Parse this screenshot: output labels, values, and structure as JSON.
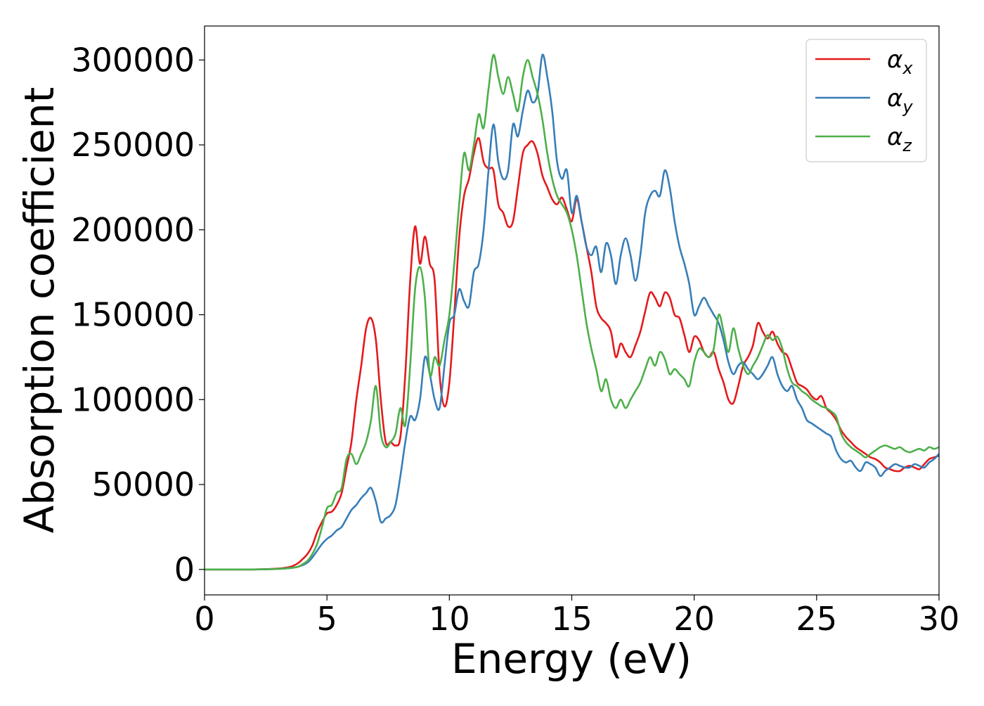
{
  "chart_data": {
    "type": "line",
    "xlabel": "Energy (eV)",
    "ylabel": "Absorption coefficient",
    "xlim": [
      0,
      30
    ],
    "ylim": [
      -15000,
      320000
    ],
    "xticks": [
      0,
      5,
      10,
      15,
      20,
      25,
      30
    ],
    "xtick_labels": [
      "0",
      "5",
      "10",
      "15",
      "20",
      "25",
      "30"
    ],
    "yticks": [
      0,
      50000,
      100000,
      150000,
      200000,
      250000,
      300000
    ],
    "ytick_labels": [
      "0",
      "50000",
      "100000",
      "150000",
      "200000",
      "250000",
      "300000"
    ],
    "grid": false,
    "legend_position": "top-right",
    "series": [
      {
        "name": "αx",
        "name_base": "α",
        "name_sub": "x",
        "color": "#e41a1c",
        "x": [
          0,
          2,
          3,
          3.5,
          3.8,
          4.0,
          4.2,
          4.4,
          4.6,
          4.8,
          5.0,
          5.2,
          5.4,
          5.6,
          5.8,
          6.0,
          6.2,
          6.4,
          6.6,
          6.8,
          7.0,
          7.2,
          7.4,
          7.6,
          7.8,
          8.0,
          8.2,
          8.4,
          8.6,
          8.8,
          9.0,
          9.2,
          9.4,
          9.6,
          9.8,
          10.0,
          10.2,
          10.4,
          10.6,
          10.8,
          11.0,
          11.2,
          11.4,
          11.6,
          11.8,
          12.0,
          12.2,
          12.4,
          12.6,
          12.8,
          13.0,
          13.2,
          13.4,
          13.6,
          13.8,
          14.0,
          14.2,
          14.4,
          14.6,
          14.8,
          15.0,
          15.2,
          15.4,
          15.6,
          15.8,
          16.0,
          16.2,
          16.4,
          16.6,
          16.8,
          17.0,
          17.2,
          17.4,
          17.6,
          17.8,
          18.0,
          18.2,
          18.4,
          18.6,
          18.8,
          19.0,
          19.2,
          19.4,
          19.6,
          19.8,
          20.0,
          20.2,
          20.4,
          20.6,
          20.8,
          21.0,
          21.2,
          21.4,
          21.6,
          21.8,
          22.0,
          22.2,
          22.4,
          22.6,
          22.8,
          23.0,
          23.2,
          23.4,
          23.6,
          23.8,
          24.0,
          24.2,
          24.4,
          24.6,
          24.8,
          25.0,
          25.2,
          25.4,
          25.6,
          25.8,
          26.0,
          26.2,
          26.4,
          26.6,
          26.8,
          27.0,
          27.2,
          27.4,
          27.6,
          27.8,
          28.0,
          28.2,
          28.4,
          28.6,
          28.8,
          29.0,
          29.2,
          29.4,
          29.6,
          29.8,
          30.0
        ],
        "y": [
          0,
          0,
          500,
          1500,
          3500,
          6000,
          9000,
          14000,
          22000,
          28000,
          33000,
          34000,
          38000,
          45000,
          60000,
          75000,
          100000,
          120000,
          142000,
          148000,
          135000,
          100000,
          75000,
          75000,
          73000,
          78000,
          115000,
          170000,
          202000,
          180000,
          196000,
          180000,
          170000,
          115000,
          96000,
          110000,
          150000,
          195000,
          220000,
          230000,
          245000,
          254000,
          240000,
          236000,
          235000,
          215000,
          210000,
          202000,
          205000,
          225000,
          245000,
          250000,
          252000,
          245000,
          232000,
          225000,
          218000,
          215000,
          219000,
          212000,
          205000,
          218000,
          205000,
          190000,
          175000,
          155000,
          148000,
          145000,
          140000,
          125000,
          133000,
          128000,
          125000,
          132000,
          140000,
          152000,
          163000,
          160000,
          155000,
          163000,
          160000,
          150000,
          148000,
          138000,
          128000,
          137000,
          135000,
          128000,
          125000,
          128000,
          118000,
          110000,
          100000,
          98000,
          108000,
          120000,
          125000,
          132000,
          145000,
          140000,
          136000,
          140000,
          133000,
          128000,
          126000,
          118000,
          110000,
          108000,
          106000,
          102000,
          100000,
          102000,
          95000,
          92000,
          88000,
          82000,
          78000,
          75000,
          72000,
          70000,
          68000,
          66000,
          65000,
          63000,
          60000,
          59000,
          58000,
          58000,
          60000,
          61000,
          60000,
          59000,
          62000,
          65000,
          66000,
          67000
        ]
      },
      {
        "name": "αy",
        "name_base": "α",
        "name_sub": "y",
        "color": "#377eb8",
        "x": [
          0,
          2,
          3,
          3.5,
          3.8,
          4.0,
          4.2,
          4.4,
          4.6,
          4.8,
          5.0,
          5.2,
          5.4,
          5.6,
          5.8,
          6.0,
          6.2,
          6.4,
          6.6,
          6.8,
          7.0,
          7.2,
          7.4,
          7.6,
          7.8,
          8.0,
          8.2,
          8.4,
          8.6,
          8.8,
          9.0,
          9.2,
          9.4,
          9.6,
          9.8,
          10.0,
          10.2,
          10.4,
          10.6,
          10.8,
          11.0,
          11.2,
          11.4,
          11.6,
          11.8,
          12.0,
          12.2,
          12.4,
          12.6,
          12.8,
          13.0,
          13.2,
          13.4,
          13.6,
          13.8,
          14.0,
          14.2,
          14.4,
          14.6,
          14.8,
          15.0,
          15.2,
          15.4,
          15.6,
          15.8,
          16.0,
          16.2,
          16.4,
          16.6,
          16.8,
          17.0,
          17.2,
          17.4,
          17.6,
          17.8,
          18.0,
          18.2,
          18.4,
          18.6,
          18.8,
          19.0,
          19.2,
          19.4,
          19.6,
          19.8,
          20.0,
          20.2,
          20.4,
          20.6,
          20.8,
          21.0,
          21.2,
          21.4,
          21.6,
          21.8,
          22.0,
          22.2,
          22.4,
          22.6,
          22.8,
          23.0,
          23.2,
          23.4,
          23.6,
          23.8,
          24.0,
          24.2,
          24.4,
          24.6,
          24.8,
          25.0,
          25.2,
          25.4,
          25.6,
          25.8,
          26.0,
          26.2,
          26.4,
          26.6,
          26.8,
          27.0,
          27.2,
          27.4,
          27.6,
          27.8,
          28.0,
          28.2,
          28.4,
          28.6,
          28.8,
          29.0,
          29.2,
          29.4,
          29.6,
          29.8,
          30.0
        ],
        "y": [
          0,
          0,
          300,
          800,
          1500,
          2500,
          4000,
          7000,
          11000,
          15000,
          18000,
          20000,
          23000,
          25000,
          30000,
          35000,
          38000,
          42000,
          45000,
          48000,
          40000,
          28000,
          30000,
          32000,
          38000,
          55000,
          75000,
          90000,
          88000,
          100000,
          125000,
          115000,
          100000,
          95000,
          120000,
          145000,
          150000,
          165000,
          158000,
          155000,
          175000,
          180000,
          200000,
          235000,
          262000,
          240000,
          230000,
          235000,
          262000,
          255000,
          270000,
          282000,
          275000,
          280000,
          303000,
          290000,
          270000,
          240000,
          230000,
          235000,
          210000,
          220000,
          205000,
          190000,
          185000,
          190000,
          175000,
          192000,
          185000,
          168000,
          185000,
          195000,
          185000,
          170000,
          185000,
          210000,
          220000,
          223000,
          220000,
          235000,
          225000,
          205000,
          190000,
          180000,
          168000,
          150000,
          155000,
          160000,
          155000,
          150000,
          145000,
          135000,
          122000,
          115000,
          120000,
          122000,
          118000,
          115000,
          112000,
          115000,
          120000,
          125000,
          115000,
          108000,
          105000,
          108000,
          100000,
          95000,
          88000,
          86000,
          84000,
          82000,
          80000,
          78000,
          70000,
          65000,
          63000,
          64000,
          60000,
          58000,
          63000,
          62000,
          60000,
          55000,
          58000,
          60000,
          62000,
          61000,
          60000,
          60000,
          62000,
          61000,
          60000,
          63000,
          65000,
          68000
        ]
      },
      {
        "name": "αz",
        "name_base": "α",
        "name_sub": "z",
        "color": "#4daf4a",
        "x": [
          0,
          2,
          3,
          3.5,
          3.8,
          4.0,
          4.2,
          4.4,
          4.6,
          4.8,
          5.0,
          5.2,
          5.4,
          5.6,
          5.8,
          6.0,
          6.2,
          6.4,
          6.6,
          6.8,
          7.0,
          7.2,
          7.4,
          7.6,
          7.8,
          8.0,
          8.2,
          8.4,
          8.6,
          8.8,
          9.0,
          9.2,
          9.4,
          9.6,
          9.8,
          10.0,
          10.2,
          10.4,
          10.6,
          10.8,
          11.0,
          11.2,
          11.4,
          11.6,
          11.8,
          12.0,
          12.2,
          12.4,
          12.6,
          12.8,
          13.0,
          13.2,
          13.4,
          13.6,
          13.8,
          14.0,
          14.2,
          14.4,
          14.6,
          14.8,
          15.0,
          15.2,
          15.4,
          15.6,
          15.8,
          16.0,
          16.2,
          16.4,
          16.6,
          16.8,
          17.0,
          17.2,
          17.4,
          17.6,
          17.8,
          18.0,
          18.2,
          18.4,
          18.6,
          18.8,
          19.0,
          19.2,
          19.4,
          19.6,
          19.8,
          20.0,
          20.2,
          20.4,
          20.6,
          20.8,
          21.0,
          21.2,
          21.4,
          21.6,
          21.8,
          22.0,
          22.2,
          22.4,
          22.6,
          22.8,
          23.0,
          23.2,
          23.4,
          23.6,
          23.8,
          24.0,
          24.2,
          24.4,
          24.6,
          24.8,
          25.0,
          25.2,
          25.4,
          25.6,
          25.8,
          26.0,
          26.2,
          26.4,
          26.6,
          26.8,
          27.0,
          27.2,
          27.4,
          27.6,
          27.8,
          28.0,
          28.2,
          28.4,
          28.6,
          28.8,
          29.0,
          29.2,
          29.4,
          29.6,
          29.8,
          30.0
        ],
        "y": [
          0,
          0,
          300,
          800,
          1500,
          3000,
          5000,
          9000,
          15000,
          25000,
          36000,
          38000,
          45000,
          48000,
          65000,
          68000,
          62000,
          68000,
          75000,
          88000,
          108000,
          80000,
          72000,
          75000,
          80000,
          95000,
          85000,
          120000,
          165000,
          178000,
          160000,
          115000,
          125000,
          120000,
          135000,
          150000,
          180000,
          215000,
          245000,
          235000,
          250000,
          268000,
          260000,
          283000,
          303000,
          290000,
          280000,
          290000,
          280000,
          270000,
          290000,
          300000,
          290000,
          280000,
          265000,
          245000,
          230000,
          220000,
          215000,
          210000,
          200000,
          185000,
          165000,
          145000,
          130000,
          118000,
          105000,
          112000,
          100000,
          95000,
          100000,
          95000,
          100000,
          105000,
          110000,
          118000,
          125000,
          120000,
          128000,
          124000,
          115000,
          118000,
          115000,
          112000,
          108000,
          122000,
          130000,
          128000,
          125000,
          130000,
          150000,
          140000,
          128000,
          142000,
          130000,
          120000,
          115000,
          120000,
          125000,
          132000,
          138000,
          135000,
          137000,
          130000,
          118000,
          110000,
          108000,
          105000,
          103000,
          100000,
          98000,
          96000,
          95000,
          93000,
          90000,
          80000,
          75000,
          72000,
          70000,
          68000,
          66000,
          68000,
          70000,
          72000,
          73000,
          72000,
          71000,
          72000,
          70000,
          69000,
          70000,
          71000,
          70000,
          72000,
          71000,
          72000
        ]
      }
    ]
  }
}
